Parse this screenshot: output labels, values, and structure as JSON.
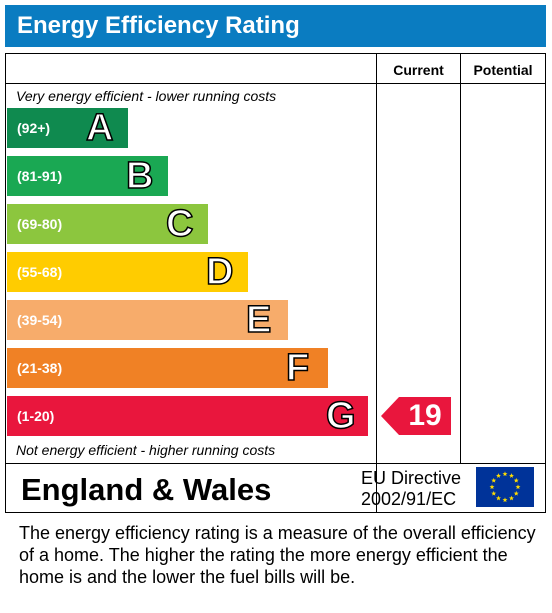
{
  "title": "Energy Efficiency Rating",
  "columns": {
    "current": "Current",
    "potential": "Potential"
  },
  "top_caption": "Very energy efficient - lower running costs",
  "bottom_caption": "Not energy efficient - higher running costs",
  "bands": [
    {
      "range": "(92+)",
      "letter": "A",
      "color": "#0f8a4f"
    },
    {
      "range": "(81-91)",
      "letter": "B",
      "color": "#1aa853"
    },
    {
      "range": "(69-80)",
      "letter": "C",
      "color": "#8cc63e"
    },
    {
      "range": "(55-68)",
      "letter": "D",
      "color": "#ffcc00"
    },
    {
      "range": "(39-54)",
      "letter": "E",
      "color": "#f7ac6b"
    },
    {
      "range": "(21-38)",
      "letter": "F",
      "color": "#f08125"
    },
    {
      "range": "(1-20)",
      "letter": "G",
      "color": "#e9163d"
    }
  ],
  "ratings": {
    "current": 19,
    "current_band": "G",
    "current_color": "#e9163d"
  },
  "footer": {
    "country": "England & Wales",
    "directive_line1": "EU Directive",
    "directive_line2": "2002/91/EC",
    "flag_icon": "eu-flag-icon",
    "flag_color": "#003399",
    "star_color": "#ffdd00"
  },
  "description": "The energy efficiency rating is a measure of the overall efficiency of a home.  The higher the rating the more energy efficient the home is and the lower the fuel bills will be.",
  "chart_data": {
    "type": "bar",
    "categories": [
      "A",
      "B",
      "C",
      "D",
      "E",
      "F",
      "G"
    ],
    "ranges": [
      "(92+)",
      "(81-91)",
      "(69-80)",
      "(55-68)",
      "(39-54)",
      "(21-38)",
      "(1-20)"
    ],
    "current": 19,
    "potential": null
  }
}
